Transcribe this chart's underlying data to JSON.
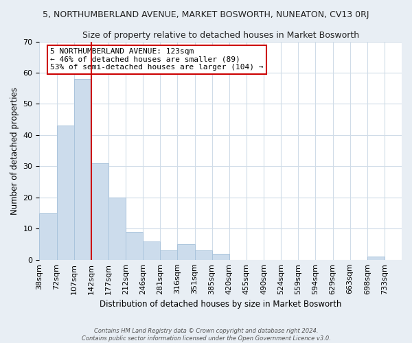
{
  "title": "5, NORTHUMBERLAND AVENUE, MARKET BOSWORTH, NUNEATON, CV13 0RJ",
  "subtitle": "Size of property relative to detached houses in Market Bosworth",
  "xlabel": "Distribution of detached houses by size in Market Bosworth",
  "ylabel": "Number of detached properties",
  "bin_labels": [
    "38sqm",
    "72sqm",
    "107sqm",
    "142sqm",
    "177sqm",
    "212sqm",
    "246sqm",
    "281sqm",
    "316sqm",
    "351sqm",
    "385sqm",
    "420sqm",
    "455sqm",
    "490sqm",
    "524sqm",
    "559sqm",
    "594sqm",
    "629sqm",
    "663sqm",
    "698sqm",
    "733sqm"
  ],
  "bar_values": [
    15,
    43,
    58,
    31,
    20,
    9,
    6,
    3,
    5,
    3,
    2,
    0,
    0,
    0,
    0,
    0,
    0,
    0,
    0,
    1,
    0
  ],
  "bar_color": "#ccdcec",
  "bar_edgecolor": "#aac4dc",
  "vline_color": "#cc0000",
  "vline_index": 2,
  "ylim": [
    0,
    70
  ],
  "yticks": [
    0,
    10,
    20,
    30,
    40,
    50,
    60,
    70
  ],
  "annotation_text": "5 NORTHUMBERLAND AVENUE: 123sqm\n← 46% of detached houses are smaller (89)\n53% of semi-detached houses are larger (104) →",
  "annotation_box_edgecolor": "#cc0000",
  "annotation_box_facecolor": "#ffffff",
  "footer_line1": "Contains HM Land Registry data © Crown copyright and database right 2024.",
  "footer_line2": "Contains public sector information licensed under the Open Government Licence v3.0.",
  "background_color": "#e8eef4",
  "plot_background_color": "#ffffff",
  "grid_color": "#d0dce8",
  "title_fontsize": 9,
  "subtitle_fontsize": 9,
  "xlabel_fontsize": 8.5,
  "ylabel_fontsize": 8.5,
  "tick_fontsize": 8,
  "annotation_fontsize": 8,
  "footer_fontsize": 6
}
